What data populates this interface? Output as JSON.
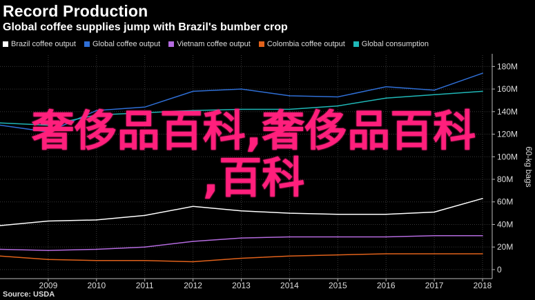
{
  "header": {
    "title": "Record Production",
    "subtitle": "Global coffee supplies jump with Brazil's bumber crop"
  },
  "footer": {
    "source": "Source: USDA"
  },
  "overlay": {
    "line1": "奢侈品百科,奢侈品百科",
    "line2": ",百科"
  },
  "colors": {
    "background": "#000000",
    "brazil": "#ffffff",
    "global_output": "#2f6fd6",
    "vietnam": "#b56be0",
    "colombia": "#e2621b",
    "consumption": "#1fb8b8",
    "overlay_text": "#ff1f7c"
  },
  "chart_data": {
    "type": "line",
    "title": "Record Production",
    "subtitle": "Global coffee supplies jump with Brazil's bumber crop",
    "xlabel": "",
    "ylabel": "60-kg bags",
    "x": [
      2008,
      2009,
      2010,
      2011,
      2012,
      2013,
      2014,
      2015,
      2016,
      2017,
      2018
    ],
    "x_ticks": [
      "2009",
      "2010",
      "2011",
      "2012",
      "2013",
      "2014",
      "2015",
      "2016",
      "2017",
      "2018"
    ],
    "x_tick_values": [
      2009,
      2010,
      2011,
      2012,
      2013,
      2014,
      2015,
      2016,
      2017,
      2018
    ],
    "xlim": [
      2008,
      2018.2
    ],
    "ylim": [
      -8,
      190
    ],
    "y_ticks": [
      "0",
      "20M",
      "40M",
      "60M",
      "80M",
      "100M",
      "120M",
      "140M",
      "160M",
      "180M"
    ],
    "y_tick_values": [
      0,
      20,
      40,
      60,
      80,
      100,
      120,
      140,
      160,
      180
    ],
    "grid": true,
    "legend_position": "top-left",
    "series": [
      {
        "name": "Brazil coffee output",
        "color": "#ffffff",
        "values": [
          39,
          43,
          44,
          48,
          56,
          52,
          50,
          49,
          49,
          51,
          63
        ]
      },
      {
        "name": "Global coffee output",
        "color": "#2f6fd6",
        "values": [
          128,
          122,
          141,
          144,
          158,
          160,
          154,
          153,
          162,
          159,
          174
        ]
      },
      {
        "name": "Vietnam coffee output",
        "color": "#b56be0",
        "values": [
          18,
          17,
          18,
          20,
          25,
          28,
          29,
          29,
          29,
          30,
          30
        ]
      },
      {
        "name": "Colombia coffee output",
        "color": "#e2621b",
        "values": [
          12,
          9,
          8,
          8,
          7,
          10,
          12,
          13,
          14,
          14,
          14
        ]
      },
      {
        "name": "Global consumption",
        "color": "#1fb8b8",
        "values": [
          130,
          128,
          137,
          139,
          141,
          142,
          142,
          145,
          152,
          155,
          158
        ]
      }
    ]
  }
}
